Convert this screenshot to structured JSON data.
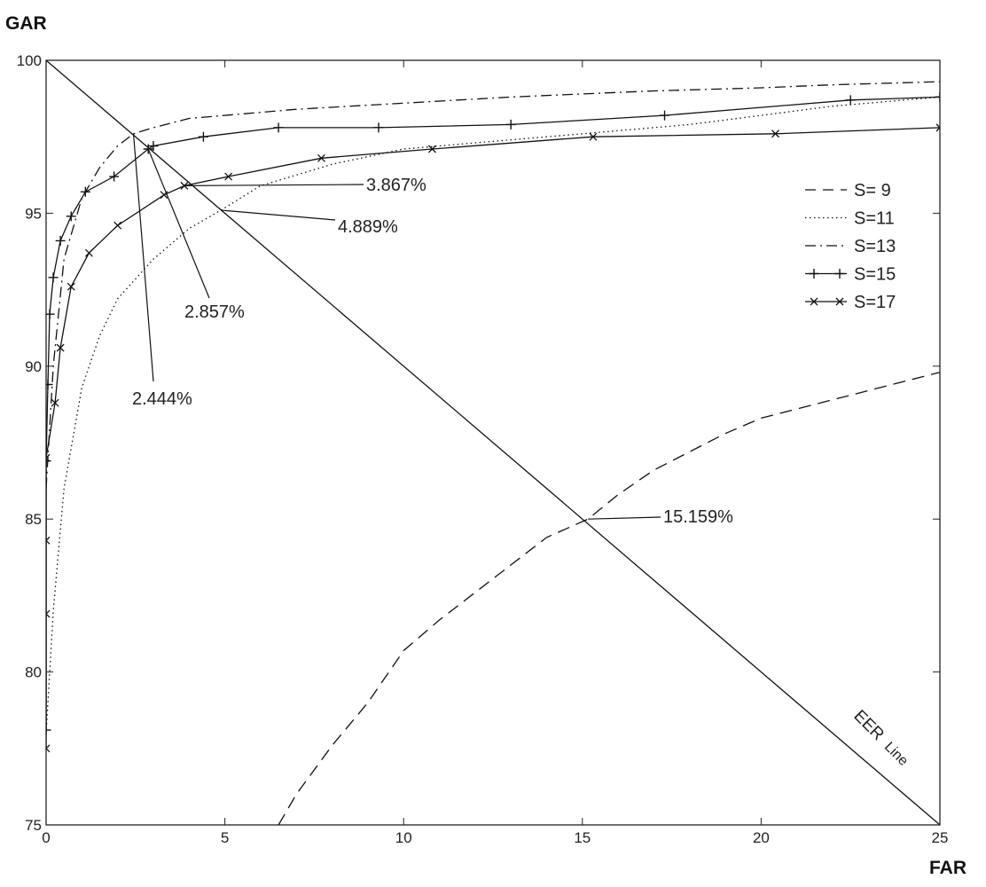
{
  "chart_data": {
    "type": "line",
    "xlabel": "FAR",
    "ylabel": "GAR",
    "xlim": [
      0,
      25
    ],
    "ylim": [
      75,
      100
    ],
    "xticks": [
      0,
      5,
      10,
      15,
      20,
      25
    ],
    "yticks": [
      75,
      80,
      85,
      90,
      95,
      100
    ],
    "grid": false,
    "legend_position": "right",
    "series": [
      {
        "name": "S= 9",
        "style": "dashed",
        "marker": "none",
        "points": [
          [
            6.5,
            75.0
          ],
          [
            7.0,
            76.0
          ],
          [
            8.0,
            77.6
          ],
          [
            9.0,
            79.0
          ],
          [
            10.0,
            80.7
          ],
          [
            11.0,
            81.7
          ],
          [
            12.0,
            82.6
          ],
          [
            13.0,
            83.5
          ],
          [
            14.0,
            84.4
          ],
          [
            15.159,
            85.0
          ],
          [
            16.0,
            85.8
          ],
          [
            17.0,
            86.6
          ],
          [
            18.0,
            87.2
          ],
          [
            19.0,
            87.8
          ],
          [
            20.0,
            88.3
          ],
          [
            21.0,
            88.6
          ],
          [
            22.0,
            88.9
          ],
          [
            23.0,
            89.2
          ],
          [
            24.0,
            89.5
          ],
          [
            25.0,
            89.8
          ]
        ]
      },
      {
        "name": "S=11",
        "style": "dotted",
        "marker": "none",
        "points": [
          [
            0.0,
            78.0
          ],
          [
            0.2,
            82.0
          ],
          [
            0.5,
            86.0
          ],
          [
            1.0,
            89.3
          ],
          [
            1.5,
            91.0
          ],
          [
            2.0,
            92.2
          ],
          [
            3.0,
            93.5
          ],
          [
            4.0,
            94.5
          ],
          [
            4.889,
            95.1
          ],
          [
            6.0,
            95.9
          ],
          [
            8.0,
            96.6
          ],
          [
            10.0,
            97.1
          ],
          [
            12.0,
            97.3
          ],
          [
            15.0,
            97.6
          ],
          [
            18.0,
            97.9
          ],
          [
            20.0,
            98.2
          ],
          [
            22.0,
            98.5
          ],
          [
            25.0,
            98.8
          ]
        ]
      },
      {
        "name": "S=13",
        "style": "dashdot",
        "marker": "none",
        "points": [
          [
            0.0,
            86.0
          ],
          [
            0.2,
            90.0
          ],
          [
            0.5,
            93.5
          ],
          [
            1.0,
            95.5
          ],
          [
            1.5,
            96.5
          ],
          [
            2.0,
            97.2
          ],
          [
            2.444,
            97.6
          ],
          [
            3.0,
            97.8
          ],
          [
            4.0,
            98.1
          ],
          [
            5.0,
            98.2
          ],
          [
            7.0,
            98.4
          ],
          [
            10.0,
            98.6
          ],
          [
            13.0,
            98.8
          ],
          [
            15.0,
            98.9
          ],
          [
            17.0,
            99.0
          ],
          [
            20.0,
            99.1
          ],
          [
            22.0,
            99.2
          ],
          [
            25.0,
            99.3
          ]
        ]
      },
      {
        "name": "S=15",
        "style": "solid",
        "marker": "plus",
        "points": [
          [
            0.0,
            78.1
          ],
          [
            0.0,
            86.9
          ],
          [
            0.05,
            89.4
          ],
          [
            0.1,
            91.7
          ],
          [
            0.2,
            92.9
          ],
          [
            0.4,
            94.1
          ],
          [
            0.7,
            94.9
          ],
          [
            1.1,
            95.7
          ],
          [
            1.9,
            96.2
          ],
          [
            2.857,
            97.1
          ],
          [
            3.0,
            97.2
          ],
          [
            4.4,
            97.5
          ],
          [
            6.5,
            97.8
          ],
          [
            9.3,
            97.8
          ],
          [
            13.0,
            97.9
          ],
          [
            17.3,
            98.2
          ],
          [
            22.5,
            98.7
          ],
          [
            25.0,
            98.8
          ]
        ]
      },
      {
        "name": "S=17",
        "style": "solid",
        "marker": "x",
        "points": [
          [
            0.0,
            77.5
          ],
          [
            0.0,
            81.9
          ],
          [
            0.0,
            84.3
          ],
          [
            0.0,
            87.0
          ],
          [
            0.25,
            88.8
          ],
          [
            0.4,
            90.6
          ],
          [
            0.7,
            92.6
          ],
          [
            1.2,
            93.7
          ],
          [
            2.0,
            94.6
          ],
          [
            3.3,
            95.6
          ],
          [
            3.867,
            95.9
          ],
          [
            5.1,
            96.2
          ],
          [
            7.7,
            96.8
          ],
          [
            10.8,
            97.1
          ],
          [
            15.3,
            97.5
          ],
          [
            20.4,
            97.6
          ],
          [
            25.0,
            97.8
          ]
        ]
      }
    ],
    "eer_line": {
      "label_main": "EER",
      "label_sub": "Line",
      "points": [
        [
          0,
          100
        ],
        [
          25,
          75
        ]
      ]
    },
    "annotations": [
      {
        "text": "3.867%",
        "point": [
          3.867,
          95.9
        ]
      },
      {
        "text": "4.889%",
        "point": [
          4.889,
          95.1
        ]
      },
      {
        "text": "2.857%",
        "point": [
          2.857,
          97.1
        ]
      },
      {
        "text": "2.444%",
        "point": [
          2.444,
          97.6
        ]
      },
      {
        "text": "15.159%",
        "point": [
          15.159,
          85.0
        ]
      }
    ]
  }
}
